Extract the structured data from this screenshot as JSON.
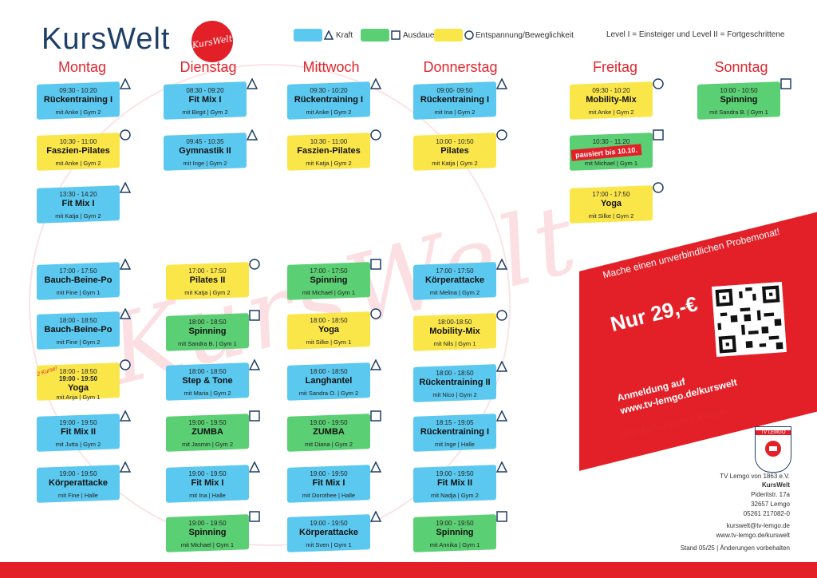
{
  "header": {
    "title": "KursWelt",
    "logo_text": "KursWelt",
    "legend": [
      {
        "label": "Kraft",
        "symbol": "triangle",
        "color": "#5bc8ef"
      },
      {
        "label": "Ausdauer",
        "symbol": "square",
        "color": "#5bcf73"
      },
      {
        "label": "Entspannung/Beweglichkeit",
        "symbol": "circle",
        "color": "#fbe64a"
      }
    ],
    "level_note": "Level I = Einsteiger und Level II = Fortgeschrittene"
  },
  "days": [
    "Montag",
    "Dienstag",
    "Mittwoch",
    "Donnerstag",
    "Freitag",
    "Sonntag"
  ],
  "courses": [
    {
      "time": "09:30 - 10:20",
      "name": "Rückentraining I",
      "info": "mit Anke | Gym 2",
      "cat": "blue"
    },
    {
      "time": "10:30 - 11:00",
      "name": "Faszien-Pilates",
      "info": "mit Anke | Gym 2",
      "cat": "yellow"
    },
    {
      "time": "13:30 - 14:20",
      "name": "Fit Mix I",
      "info": "mit Katja | Gym 2",
      "cat": "blue"
    },
    {
      "time": "17:00 - 17:50",
      "name": "Bauch-Beine-Po",
      "info": "mit Fine | Gym 1",
      "cat": "blue"
    },
    {
      "time": "18:00 - 18:50",
      "name": "Bauch-Beine-Po",
      "info": "mit Fine | Gym 2",
      "cat": "blue"
    },
    {
      "time": "18:00 - 18:50",
      "time2": "19:00 - 19:50",
      "name": "Yoga",
      "info": "mit Anja | Gym 1",
      "cat": "yellow"
    },
    {
      "time": "19:00 - 19:50",
      "name": "Fit Mix II",
      "info": "mit Jutta | Gym 2",
      "cat": "blue"
    },
    {
      "time": "19:00 - 19:50",
      "name": "Körperattacke",
      "info": "mit Fine | Halle",
      "cat": "blue"
    },
    {
      "time": "08:30 - 09:20",
      "name": "Fit Mix I",
      "info": "mit Birgit | Gym 2",
      "cat": "blue"
    },
    {
      "time": "09:45 - 10:35",
      "name": "Gymnastik II",
      "info": "mit Inge | Gym 2",
      "cat": "blue"
    },
    {
      "time": "17:00 - 17:50",
      "name": "Pilates II",
      "info": "mit Katja | Gym 2",
      "cat": "yellow"
    },
    {
      "time": "18:00 - 18:50",
      "name": "Spinning",
      "info": "mit Sandra B. | Gym 1",
      "cat": "green"
    },
    {
      "time": "18:00 - 18:50",
      "name": "Step & Tone",
      "info": "mit Maria | Gym 2",
      "cat": "blue"
    },
    {
      "time": "19:00 - 19:50",
      "name": "ZUMBA",
      "info": "mit Jasmin | Gym 2",
      "cat": "green"
    },
    {
      "time": "19:00 - 19:50",
      "name": "Fit Mix I",
      "info": "mit Ina | Halle",
      "cat": "blue"
    },
    {
      "time": "19:00 - 19:50",
      "name": "Spinning",
      "info": "mit Michael | Gym 1",
      "cat": "green"
    },
    {
      "time": "09:30 - 10:20",
      "name": "Rückentraining I",
      "info": "mit Anke | Gym 2",
      "cat": "blue"
    },
    {
      "time": "10:30 - 11:00",
      "name": "Faszien-Pilates",
      "info": "mit Katja | Gym 2",
      "cat": "yellow"
    },
    {
      "time": "17:00 - 17:50",
      "name": "Spinning",
      "info": "mit Michael | Gym 1",
      "cat": "green"
    },
    {
      "time": "18:00 - 18:50",
      "name": "Yoga",
      "info": "mit Silke | Gym 1",
      "cat": "yellow"
    },
    {
      "time": "18:00 - 18:50",
      "name": "Langhantel",
      "info": "mit Sandra O. | Gym 2",
      "cat": "blue"
    },
    {
      "time": "19:00 - 19:50",
      "name": "ZUMBA",
      "info": "mit Diana | Gym 2",
      "cat": "green"
    },
    {
      "time": "19:00 - 19:50",
      "name": "Fit Mix I",
      "info": "mit Dorothee | Halle",
      "cat": "blue"
    },
    {
      "time": "19:00 - 19:50",
      "name": "Körperattacke",
      "info": "mit Sven | Gym 1",
      "cat": "blue"
    },
    {
      "time": "09:00- 09:50",
      "name": "Rückentraining I",
      "info": "mit Ina | Gym 2",
      "cat": "blue"
    },
    {
      "time": "10:00 - 10:50",
      "name": "Pilates",
      "info": "mit Katja | Gym 2",
      "cat": "yellow"
    },
    {
      "time": "17:00 - 17:50",
      "name": "Körperattacke",
      "info": "mit Melina | Gym 2",
      "cat": "blue"
    },
    {
      "time": "18:00-18:50",
      "name": "Mobility-Mix",
      "info": "mit Nils | Gym 1",
      "cat": "yellow"
    },
    {
      "time": "18:00 - 18:50",
      "name": "Rückentraining II",
      "info": "mit Nico | Gym 2",
      "cat": "blue"
    },
    {
      "time": "18:15 - 19:05",
      "name": "Rückentraining I",
      "info": "mit Inge | Halle",
      "cat": "blue"
    },
    {
      "time": "19:00 - 19:50",
      "name": "Fit Mix II",
      "info": "mit Nadja | Gym 2",
      "cat": "blue"
    },
    {
      "time": "19:00 - 19:50",
      "name": "Spinning",
      "info": "mit Annika | Gym 1",
      "cat": "green"
    },
    {
      "time": "09:30 - 10:20",
      "name": "Mobility-Mix",
      "info": "mit Anke | Gym 2",
      "cat": "yellow"
    },
    {
      "time": "10:30 - 11:20",
      "name": "",
      "info": "mit Michael | Gym 1",
      "cat": "green"
    },
    {
      "time": "17:00 - 17:50",
      "name": "Yoga",
      "info": "mit Silke | Gym 2",
      "cat": "yellow"
    },
    {
      "time": "10:00 - 10:50",
      "name": "Spinning",
      "info": "mit Sandra B. | Gym 1",
      "cat": "green"
    }
  ],
  "notices": {
    "paused": "pausiert bis 10.10.",
    "two_courses": "2 Kurse!"
  },
  "promo": {
    "headline": "Mache einen unverbindlichen Probemonat!",
    "price": "Nur 29,-€",
    "register_line1": "Anmeldung auf",
    "register_line2": "www.tv-lemgo.de/kurswelt"
  },
  "slogan": "Wir bewegen Lemgo",
  "crest_text": "TV LEMGO",
  "contact": {
    "org": "TV Lemgo von 1863 e.V.",
    "brand": "KursWelt",
    "street": "Pideritstr. 17a",
    "city": "32657 Lemgo",
    "phone": "05261 217082-0",
    "email": "kurswelt@tv-lemgo.de",
    "web": "www.tv-lemgo.de/kurswelt",
    "stand": "Stand 05/25 | Änderungen vorbehalten"
  },
  "watermark": "KursWelt"
}
